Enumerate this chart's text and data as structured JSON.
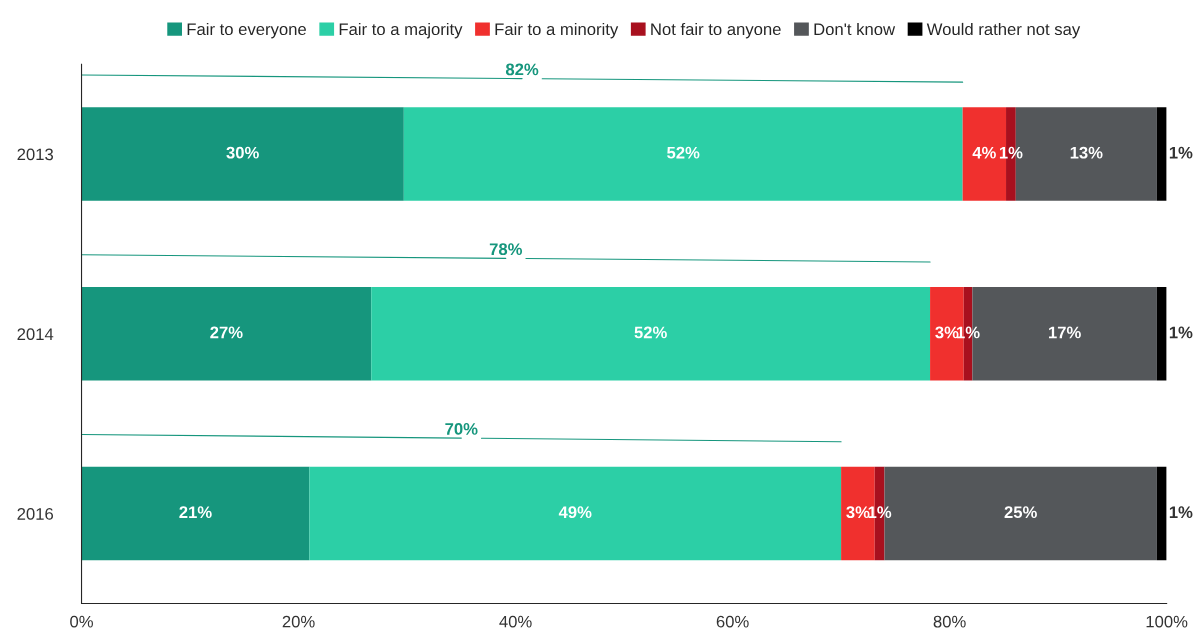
{
  "chart_data": {
    "type": "bar",
    "orientation": "horizontal",
    "stacked": true,
    "categories": [
      "2013",
      "2014",
      "2016"
    ],
    "series": [
      {
        "name": "Fair to everyone",
        "color": "#16967d",
        "values": [
          29.7,
          26.7,
          21.0
        ],
        "value_labels": [
          "30%",
          "27%",
          "21%"
        ]
      },
      {
        "name": "Fair to a majority",
        "color": "#2ccfa6",
        "values": [
          51.5,
          51.5,
          49.0
        ],
        "value_labels": [
          "52%",
          "52%",
          "49%"
        ]
      },
      {
        "name": "Fair to a minority",
        "color": "#f0302e",
        "values": [
          4.0,
          3.1,
          3.1
        ],
        "value_labels": [
          "4%",
          "3%",
          "3%"
        ]
      },
      {
        "name": "Not fair to anyone",
        "color": "#a8101e",
        "values": [
          0.9,
          0.8,
          0.9
        ],
        "value_labels": [
          "1%",
          "1%",
          "1%"
        ]
      },
      {
        "name": "Don't know",
        "color": "#54575a",
        "values": [
          13.0,
          17.0,
          25.1
        ],
        "value_labels": [
          "13%",
          "17%",
          "25%"
        ]
      },
      {
        "name": "Would rather not say",
        "color": "#000000",
        "values": [
          0.9,
          0.9,
          0.9
        ],
        "value_labels": [
          "1%",
          "1%",
          "1%"
        ]
      }
    ],
    "annotations": [
      "82%",
      "78%",
      "70%"
    ],
    "xlim": [
      0,
      100
    ],
    "xticks": [
      {
        "value": 0,
        "label": "0%"
      },
      {
        "value": 20,
        "label": "20%"
      },
      {
        "value": 40,
        "label": "40%"
      },
      {
        "value": 60,
        "label": "60%"
      },
      {
        "value": 80,
        "label": "80%"
      },
      {
        "value": 100,
        "label": "100%"
      }
    ],
    "legend": "top",
    "grid": false
  }
}
